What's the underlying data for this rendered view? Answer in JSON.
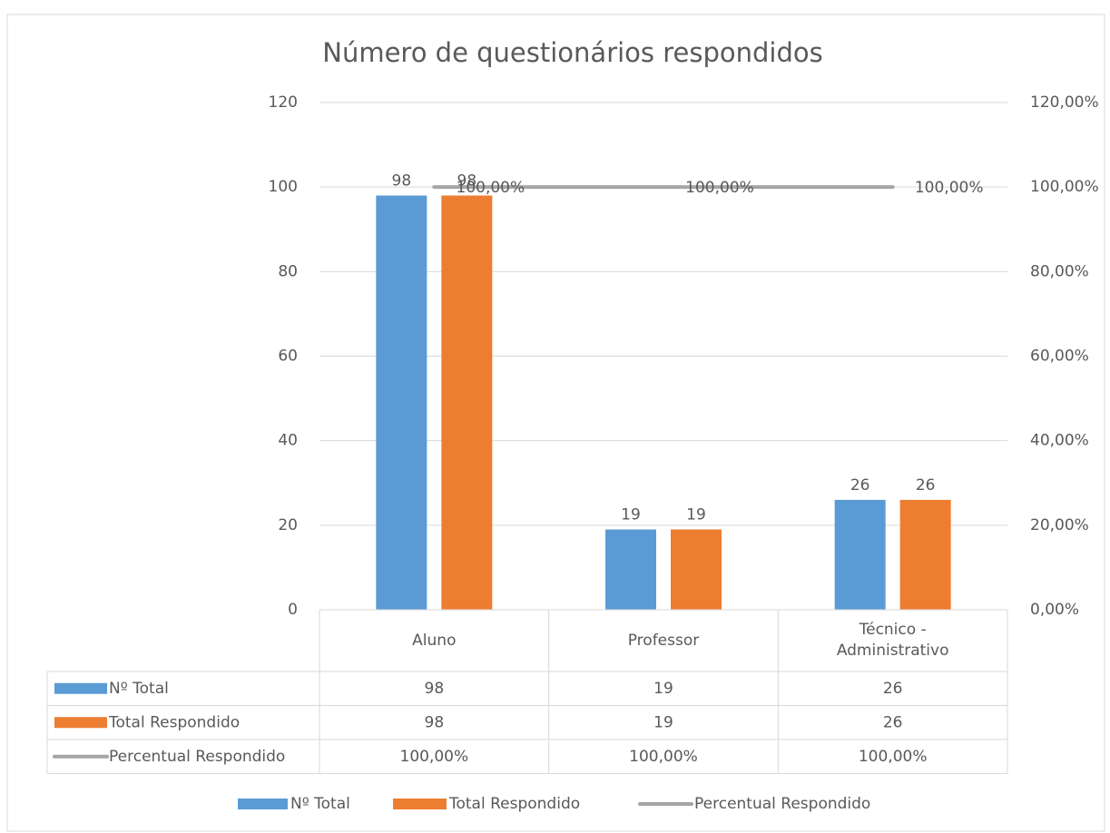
{
  "chart_data": {
    "type": "bar",
    "title": "Número de questionários respondidos",
    "categories": [
      "Aluno",
      "Professor",
      "Técnico - Administrativo"
    ],
    "series": [
      {
        "name": "Nº Total",
        "color": "#5b9bd5",
        "values": [
          98,
          19,
          26
        ]
      },
      {
        "name": "Total Respondido",
        "color": "#ed7d31",
        "values": [
          98,
          19,
          26
        ]
      },
      {
        "name": "Percentual Respondido",
        "color": "#a5a5a5",
        "type": "line",
        "axis": "y2",
        "values": [
          100,
          100,
          100
        ],
        "value_labels": [
          "100,00%",
          "100,00%",
          "100,00%"
        ]
      }
    ],
    "ylim": [
      0,
      120
    ],
    "yticks": [
      0,
      20,
      40,
      60,
      80,
      100,
      120
    ],
    "y2lim": [
      0,
      120
    ],
    "y2ticks": [
      {
        "value": 0,
        "label": "0,00%"
      },
      {
        "value": 20,
        "label": "20,00%"
      },
      {
        "value": 40,
        "label": "40,00%"
      },
      {
        "value": 60,
        "label": "60,00%"
      },
      {
        "value": 80,
        "label": "80,00%"
      },
      {
        "value": 100,
        "label": "100,00%"
      },
      {
        "value": 120,
        "label": "120,00%"
      }
    ],
    "grid": true,
    "legend": "bottom",
    "data_table": true
  }
}
